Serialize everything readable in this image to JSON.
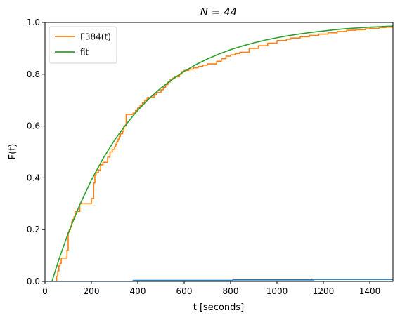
{
  "chart_data": {
    "type": "line",
    "title": "N = 44",
    "xlabel": "t [seconds]",
    "ylabel": "F(t)",
    "xlim": [
      0,
      1500
    ],
    "ylim": [
      0,
      1.0
    ],
    "xticks": [
      0,
      200,
      400,
      600,
      800,
      1000,
      1200,
      1400
    ],
    "yticks": [
      0.0,
      0.2,
      0.4,
      0.6,
      0.8,
      1.0
    ],
    "xtick_labels": [
      "0",
      "200",
      "400",
      "600",
      "800",
      "1000",
      "1200",
      "1400"
    ],
    "ytick_labels": [
      "0.0",
      "0.2",
      "0.4",
      "0.6",
      "0.8",
      "1.0"
    ],
    "grid": false,
    "legend_position": "top-left",
    "series": [
      {
        "name": "F384(t)",
        "kind": "step",
        "color": "#ff7f0e",
        "x": [
          40,
          50,
          55,
          60,
          65,
          70,
          80,
          90,
          95,
          100,
          105,
          110,
          115,
          120,
          125,
          130,
          135,
          140,
          150,
          160,
          170,
          200,
          210,
          215,
          220,
          230,
          240,
          250,
          260,
          270,
          280,
          290,
          300,
          305,
          310,
          315,
          320,
          325,
          330,
          335,
          340,
          350,
          360,
          365,
          370,
          380,
          390,
          400,
          410,
          420,
          430,
          440,
          450,
          460,
          470,
          480,
          500,
          510,
          520,
          530,
          540,
          550,
          560,
          570,
          580,
          590,
          600,
          620,
          640,
          660,
          680,
          700,
          740,
          760,
          780,
          800,
          820,
          840,
          880,
          920,
          960,
          1000,
          1040,
          1060,
          1100,
          1140,
          1180,
          1220,
          1260,
          1300,
          1340,
          1380,
          1400,
          1440,
          1470,
          1500
        ],
        "y": [
          0.0,
          0.02,
          0.04,
          0.06,
          0.07,
          0.09,
          0.09,
          0.09,
          0.12,
          0.19,
          0.2,
          0.21,
          0.23,
          0.24,
          0.25,
          0.27,
          0.27,
          0.27,
          0.3,
          0.3,
          0.3,
          0.32,
          0.38,
          0.41,
          0.42,
          0.43,
          0.45,
          0.46,
          0.46,
          0.48,
          0.5,
          0.51,
          0.52,
          0.53,
          0.54,
          0.55,
          0.56,
          0.57,
          0.57,
          0.58,
          0.6,
          0.645,
          0.645,
          0.645,
          0.645,
          0.65,
          0.66,
          0.67,
          0.68,
          0.69,
          0.7,
          0.71,
          0.71,
          0.71,
          0.72,
          0.73,
          0.74,
          0.75,
          0.76,
          0.77,
          0.78,
          0.785,
          0.79,
          0.79,
          0.8,
          0.81,
          0.815,
          0.82,
          0.825,
          0.83,
          0.835,
          0.84,
          0.85,
          0.86,
          0.87,
          0.875,
          0.88,
          0.885,
          0.9,
          0.91,
          0.92,
          0.93,
          0.935,
          0.94,
          0.945,
          0.95,
          0.955,
          0.96,
          0.965,
          0.97,
          0.972,
          0.975,
          0.977,
          0.98,
          0.982,
          0.982
        ]
      },
      {
        "name": "fit",
        "kind": "line",
        "color": "#2ca02c",
        "x": [
          30,
          60,
          100,
          150,
          200,
          250,
          300,
          350,
          400,
          450,
          500,
          550,
          600,
          650,
          700,
          750,
          800,
          850,
          900,
          950,
          1000,
          1050,
          1100,
          1150,
          1200,
          1250,
          1300,
          1350,
          1400,
          1450,
          1500
        ],
        "y": [
          0.0,
          0.085,
          0.186,
          0.296,
          0.391,
          0.474,
          0.546,
          0.607,
          0.661,
          0.707,
          0.747,
          0.781,
          0.811,
          0.837,
          0.859,
          0.878,
          0.895,
          0.909,
          0.921,
          0.932,
          0.941,
          0.949,
          0.956,
          0.962,
          0.967,
          0.972,
          0.976,
          0.979,
          0.982,
          0.984,
          0.986
        ]
      },
      {
        "kind": "step",
        "color": "#1f77b4",
        "x": [
          0,
          380,
          810,
          1160,
          1500
        ],
        "y": [
          0.0,
          0.004,
          0.006,
          0.008,
          0.008
        ]
      }
    ]
  }
}
